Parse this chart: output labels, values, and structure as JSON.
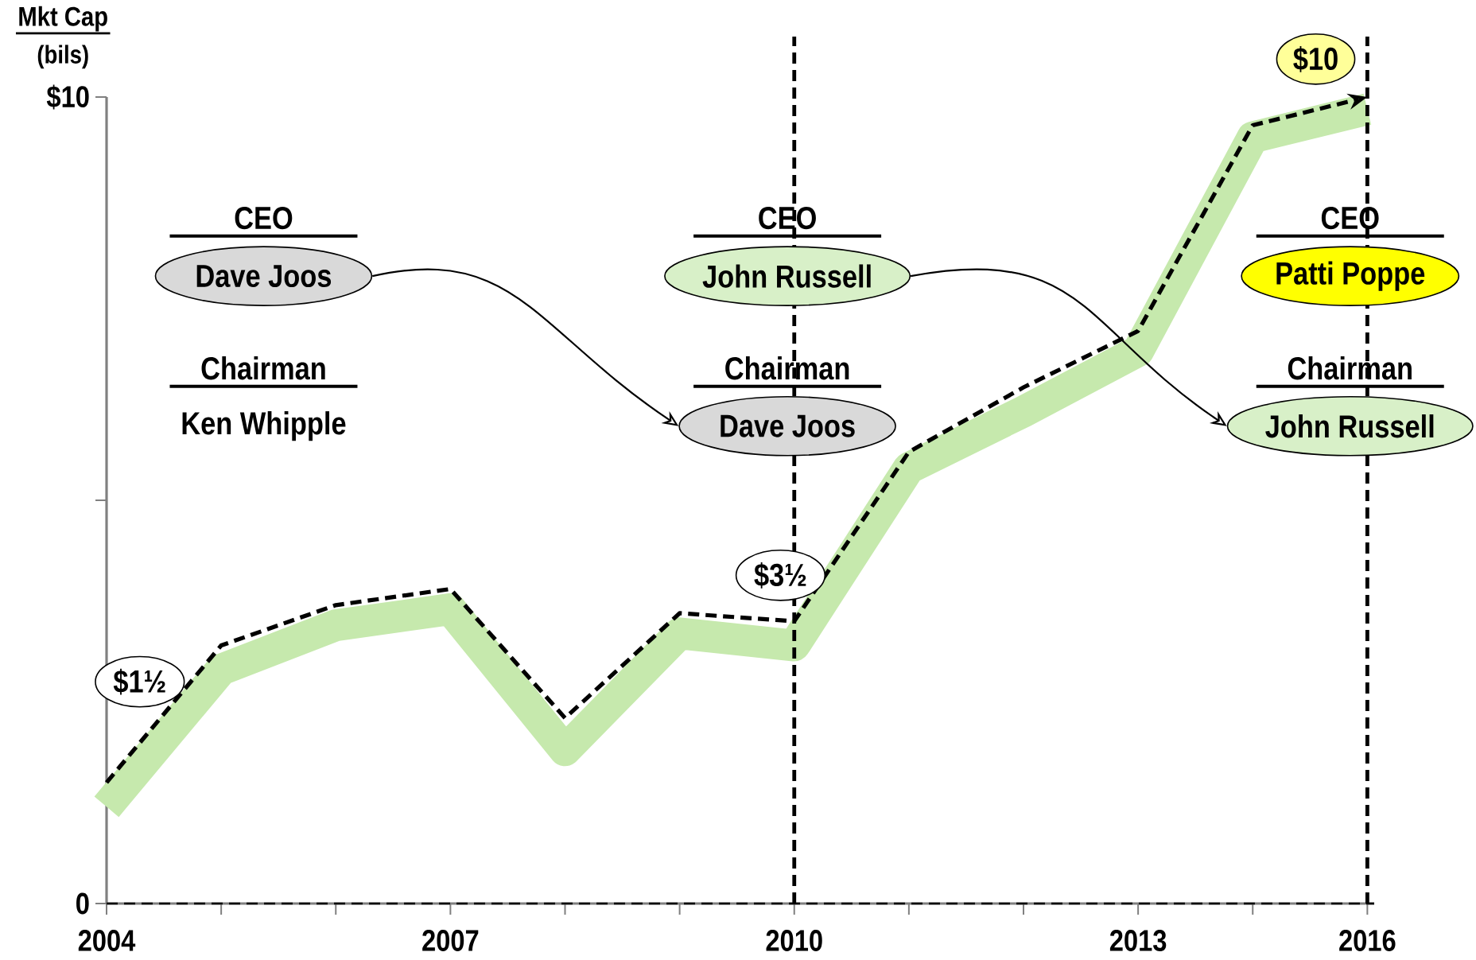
{
  "chart_data": {
    "type": "line",
    "ylabel": "Mkt Cap",
    "categories": [
      "2004",
      null,
      null,
      "2007",
      null,
      null,
      "2010",
      null,
      null,
      "2013",
      null,
      "2016"
    ],
    "series": [
      {
        "color": "#c6e9ad",
        "line_style": "solid",
        "values": [
          1.2,
          2.9,
          3.45,
          3.65,
          1.9,
          3.35,
          3.2,
          5.4,
          6.1,
          6.85,
          9.5,
          9.85
        ]
      },
      {
        "color": "#000000",
        "line_style": "dashed",
        "values": [
          1.5,
          3.2,
          3.7,
          3.9,
          2.3,
          3.6,
          3.5,
          5.6,
          6.4,
          7.1,
          9.65,
          10
        ]
      }
    ],
    "ylim": [
      0,
      10
    ],
    "yticks": [
      0,
      {
        "value": 5,
        "label": null
      },
      {
        "value": 10,
        "label": "$10"
      }
    ],
    "ref_lines": [
      {
        "axis": "x",
        "value": "2010",
        "line_style": "dashed"
      },
      {
        "axis": "x",
        "value": "2016",
        "line_style": "dashed"
      },
      {
        "axis": "y",
        "value": 0,
        "line_style": "dashed"
      }
    ],
    "marker": "none",
    "annotations": [
      "(bils)",
      "CEO",
      "Dave Joos",
      "Chairman",
      "Ken Whipple",
      "CEO",
      "John Russell",
      "Chairman",
      "Dave Joos",
      "CEO",
      "Patti Poppe",
      "Chairman",
      "John Russell",
      {
        "text": "$1½",
        "x": "2004",
        "y": 1.5
      },
      {
        "text": "$3½",
        "x": "2010",
        "y": 3.5
      },
      "$10"
    ]
  }
}
